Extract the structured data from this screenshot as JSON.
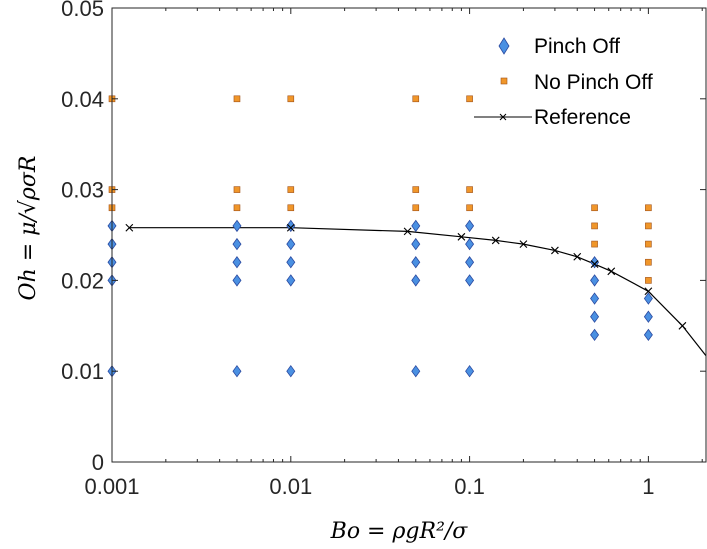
{
  "colors": {
    "pinch": "#4a90e2",
    "pinch_edge": "#2b4aa0",
    "nopinch": "#f0962a",
    "nopinch_edge": "#a0521a",
    "reference": "#000000",
    "axis": "#262626"
  },
  "chart_data": {
    "type": "scatter",
    "xscale": "log",
    "xlim": [
      0.001,
      2.1
    ],
    "ylim": [
      0,
      0.05
    ],
    "x_ticks": [
      0.001,
      0.01,
      0.1,
      1
    ],
    "x_tick_labels": [
      "0.001",
      "0.01",
      "0.1",
      "1"
    ],
    "y_ticks": [
      0,
      0.01,
      0.02,
      0.03,
      0.04,
      0.05
    ],
    "y_tick_labels": [
      "0",
      "0.01",
      "0.02",
      "0.03",
      "0.04",
      "0.05"
    ],
    "xlabel": "Bo = ρgR²/σ",
    "ylabel": "Oh = μ/√ρσR",
    "legend_position": "top-right",
    "series": [
      {
        "name": "Pinch Off",
        "marker": "diamond",
        "points": [
          [
            0.001,
            0.01
          ],
          [
            0.001,
            0.02
          ],
          [
            0.001,
            0.022
          ],
          [
            0.001,
            0.024
          ],
          [
            0.001,
            0.026
          ],
          [
            0.005,
            0.01
          ],
          [
            0.005,
            0.02
          ],
          [
            0.005,
            0.022
          ],
          [
            0.005,
            0.024
          ],
          [
            0.005,
            0.026
          ],
          [
            0.01,
            0.01
          ],
          [
            0.01,
            0.02
          ],
          [
            0.01,
            0.022
          ],
          [
            0.01,
            0.024
          ],
          [
            0.01,
            0.026
          ],
          [
            0.05,
            0.01
          ],
          [
            0.05,
            0.02
          ],
          [
            0.05,
            0.022
          ],
          [
            0.05,
            0.024
          ],
          [
            0.05,
            0.026
          ],
          [
            0.1,
            0.01
          ],
          [
            0.1,
            0.02
          ],
          [
            0.1,
            0.022
          ],
          [
            0.1,
            0.024
          ],
          [
            0.1,
            0.026
          ],
          [
            0.5,
            0.014
          ],
          [
            0.5,
            0.016
          ],
          [
            0.5,
            0.018
          ],
          [
            0.5,
            0.02
          ],
          [
            0.5,
            0.022
          ],
          [
            1,
            0.014
          ],
          [
            1,
            0.016
          ],
          [
            1,
            0.018
          ]
        ]
      },
      {
        "name": "No Pinch Off",
        "marker": "square",
        "points": [
          [
            0.001,
            0.028
          ],
          [
            0.001,
            0.03
          ],
          [
            0.001,
            0.04
          ],
          [
            0.005,
            0.028
          ],
          [
            0.005,
            0.03
          ],
          [
            0.005,
            0.04
          ],
          [
            0.01,
            0.028
          ],
          [
            0.01,
            0.03
          ],
          [
            0.01,
            0.04
          ],
          [
            0.05,
            0.028
          ],
          [
            0.05,
            0.03
          ],
          [
            0.05,
            0.04
          ],
          [
            0.1,
            0.028
          ],
          [
            0.1,
            0.03
          ],
          [
            0.1,
            0.04
          ],
          [
            0.5,
            0.024
          ],
          [
            0.5,
            0.026
          ],
          [
            0.5,
            0.028
          ],
          [
            1,
            0.02
          ],
          [
            1,
            0.022
          ],
          [
            1,
            0.024
          ],
          [
            1,
            0.026
          ],
          [
            1,
            0.028
          ]
        ]
      },
      {
        "name": "Reference",
        "marker": "x",
        "line": true,
        "points": [
          [
            0.00125,
            0.0258
          ],
          [
            0.01,
            0.0258
          ],
          [
            0.045,
            0.0254
          ],
          [
            0.09,
            0.0248
          ],
          [
            0.14,
            0.0244
          ],
          [
            0.2,
            0.024
          ],
          [
            0.3,
            0.0233
          ],
          [
            0.4,
            0.0226
          ],
          [
            0.5,
            0.0218
          ],
          [
            0.62,
            0.021
          ],
          [
            1.0,
            0.0188
          ],
          [
            1.55,
            0.015
          ]
        ],
        "line_end": [
          2.1,
          0.0117
        ]
      }
    ]
  }
}
